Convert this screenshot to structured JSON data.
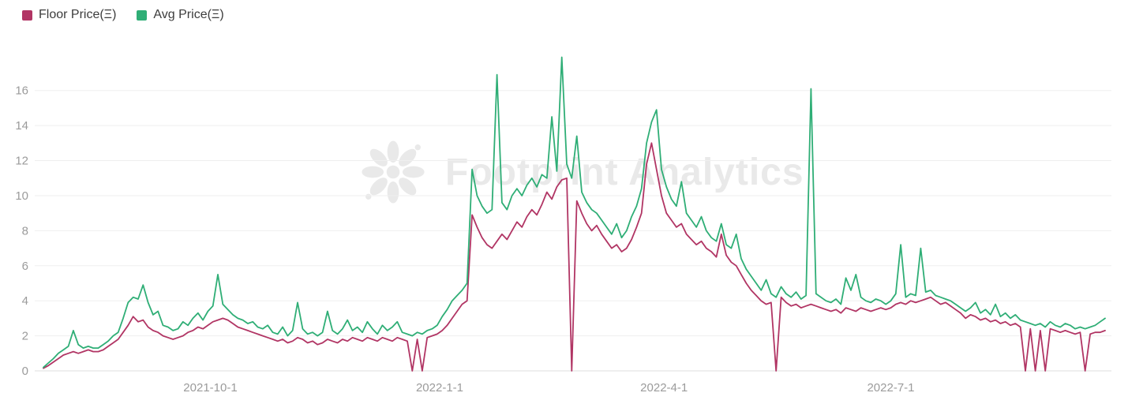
{
  "legend": {
    "items": [
      {
        "label": "Floor Price(Ξ)",
        "color": "#b13564"
      },
      {
        "label": "Avg Price(Ξ)",
        "color": "#2fae76"
      }
    ]
  },
  "watermark": {
    "text": "Footprint Analytics",
    "icon": "footprint-flower-icon"
  },
  "chart_data": {
    "type": "line",
    "title": "",
    "xlabel": "",
    "ylabel": "",
    "grid": "horizontal",
    "legend_position": "top-left",
    "x_start": "2021-07-26",
    "x_step_days": 2,
    "x_tick_labels": [
      "2021-10-1",
      "2022-1-1",
      "2022-4-1",
      "2022-7-1"
    ],
    "y_ticks": [
      0,
      2,
      4,
      6,
      8,
      10,
      12,
      14,
      16
    ],
    "ylim": [
      0,
      18.6
    ],
    "series": [
      {
        "name": "Floor Price(Ξ)",
        "color": "#b13564",
        "values": [
          0.15,
          0.3,
          0.5,
          0.7,
          0.9,
          1.0,
          1.1,
          1.0,
          1.1,
          1.2,
          1.1,
          1.1,
          1.2,
          1.4,
          1.6,
          1.8,
          2.2,
          2.6,
          3.1,
          2.8,
          2.9,
          2.5,
          2.3,
          2.2,
          2.0,
          1.9,
          1.8,
          1.9,
          2.0,
          2.2,
          2.3,
          2.5,
          2.4,
          2.6,
          2.8,
          2.9,
          3.0,
          2.9,
          2.7,
          2.5,
          2.4,
          2.3,
          2.2,
          2.1,
          2.0,
          1.9,
          1.8,
          1.7,
          1.8,
          1.6,
          1.7,
          1.9,
          1.8,
          1.6,
          1.7,
          1.5,
          1.6,
          1.8,
          1.7,
          1.6,
          1.8,
          1.7,
          1.9,
          1.8,
          1.7,
          1.9,
          1.8,
          1.7,
          1.9,
          1.8,
          1.7,
          1.9,
          1.8,
          1.7,
          0,
          1.8,
          0,
          1.9,
          2.0,
          2.1,
          2.3,
          2.6,
          3.0,
          3.4,
          3.8,
          4.0,
          8.9,
          8.2,
          7.6,
          7.2,
          7.0,
          7.4,
          7.8,
          7.5,
          8.0,
          8.5,
          8.2,
          8.8,
          9.2,
          8.9,
          9.5,
          10.2,
          9.8,
          10.5,
          10.9,
          11.0,
          0,
          9.7,
          9.0,
          8.4,
          8.0,
          8.3,
          7.8,
          7.4,
          7.0,
          7.2,
          6.8,
          7.0,
          7.5,
          8.2,
          9.0,
          11.8,
          13.0,
          11.5,
          10.0,
          9.0,
          8.6,
          8.2,
          8.4,
          7.8,
          7.5,
          7.2,
          7.4,
          7.0,
          6.8,
          6.5,
          7.8,
          6.6,
          6.2,
          6.0,
          5.5,
          5.0,
          4.6,
          4.3,
          4.0,
          3.8,
          3.9,
          0,
          4.2,
          3.9,
          3.7,
          3.8,
          3.6,
          3.7,
          3.8,
          3.7,
          3.6,
          3.5,
          3.4,
          3.5,
          3.3,
          3.6,
          3.5,
          3.4,
          3.6,
          3.5,
          3.4,
          3.5,
          3.6,
          3.5,
          3.6,
          3.8,
          3.9,
          3.8,
          4.0,
          3.9,
          4.0,
          4.1,
          4.2,
          4.0,
          3.8,
          3.9,
          3.7,
          3.5,
          3.3,
          3.0,
          3.2,
          3.1,
          2.9,
          3.0,
          2.8,
          2.9,
          2.7,
          2.8,
          2.6,
          2.7,
          2.5,
          0,
          2.4,
          0,
          2.3,
          0,
          2.4,
          2.3,
          2.2,
          2.3,
          2.2,
          2.1,
          2.2,
          0,
          2.1,
          2.2,
          2.2,
          2.3
        ]
      },
      {
        "name": "Avg Price(Ξ)",
        "color": "#2fae76",
        "values": [
          0.2,
          0.45,
          0.7,
          1.0,
          1.2,
          1.4,
          2.3,
          1.5,
          1.3,
          1.4,
          1.3,
          1.3,
          1.5,
          1.7,
          2.0,
          2.2,
          3.0,
          3.9,
          4.2,
          4.1,
          4.9,
          3.9,
          3.2,
          3.4,
          2.6,
          2.5,
          2.3,
          2.4,
          2.8,
          2.6,
          3.0,
          3.3,
          2.9,
          3.4,
          3.7,
          5.5,
          3.8,
          3.5,
          3.2,
          3.0,
          2.9,
          2.7,
          2.8,
          2.5,
          2.4,
          2.6,
          2.2,
          2.1,
          2.5,
          2.0,
          2.3,
          3.9,
          2.4,
          2.1,
          2.2,
          2.0,
          2.2,
          3.4,
          2.3,
          2.1,
          2.4,
          2.9,
          2.3,
          2.5,
          2.2,
          2.8,
          2.4,
          2.1,
          2.6,
          2.3,
          2.5,
          2.8,
          2.2,
          2.1,
          2.0,
          2.2,
          2.1,
          2.3,
          2.4,
          2.6,
          3.1,
          3.5,
          4.0,
          4.3,
          4.6,
          5.0,
          11.5,
          10.0,
          9.4,
          9.0,
          9.2,
          16.9,
          9.6,
          9.2,
          10.0,
          10.4,
          10.0,
          10.6,
          11.0,
          10.5,
          11.2,
          11.0,
          14.5,
          11.4,
          17.9,
          11.8,
          11.0,
          13.4,
          10.2,
          9.6,
          9.2,
          9.0,
          8.6,
          8.2,
          7.8,
          8.4,
          7.6,
          8.0,
          8.8,
          9.4,
          10.4,
          13.0,
          14.2,
          14.9,
          11.5,
          10.5,
          9.8,
          9.4,
          10.8,
          9.0,
          8.6,
          8.2,
          8.8,
          8.0,
          7.6,
          7.4,
          8.4,
          7.2,
          7.0,
          7.8,
          6.4,
          5.8,
          5.4,
          5.0,
          4.6,
          5.2,
          4.4,
          4.2,
          4.8,
          4.4,
          4.2,
          4.5,
          4.1,
          4.3,
          16.1,
          4.4,
          4.2,
          4.0,
          3.9,
          4.1,
          3.8,
          5.3,
          4.6,
          5.5,
          4.2,
          4.0,
          3.9,
          4.1,
          4.0,
          3.8,
          4.0,
          4.4,
          7.2,
          4.2,
          4.4,
          4.3,
          7.0,
          4.5,
          4.6,
          4.3,
          4.2,
          4.1,
          4.0,
          3.8,
          3.6,
          3.4,
          3.6,
          3.9,
          3.3,
          3.5,
          3.2,
          3.8,
          3.1,
          3.3,
          3.0,
          3.2,
          2.9,
          2.8,
          2.7,
          2.6,
          2.7,
          2.5,
          2.8,
          2.6,
          2.5,
          2.7,
          2.6,
          2.4,
          2.5,
          2.4,
          2.5,
          2.6,
          2.8,
          3.0
        ]
      }
    ]
  }
}
